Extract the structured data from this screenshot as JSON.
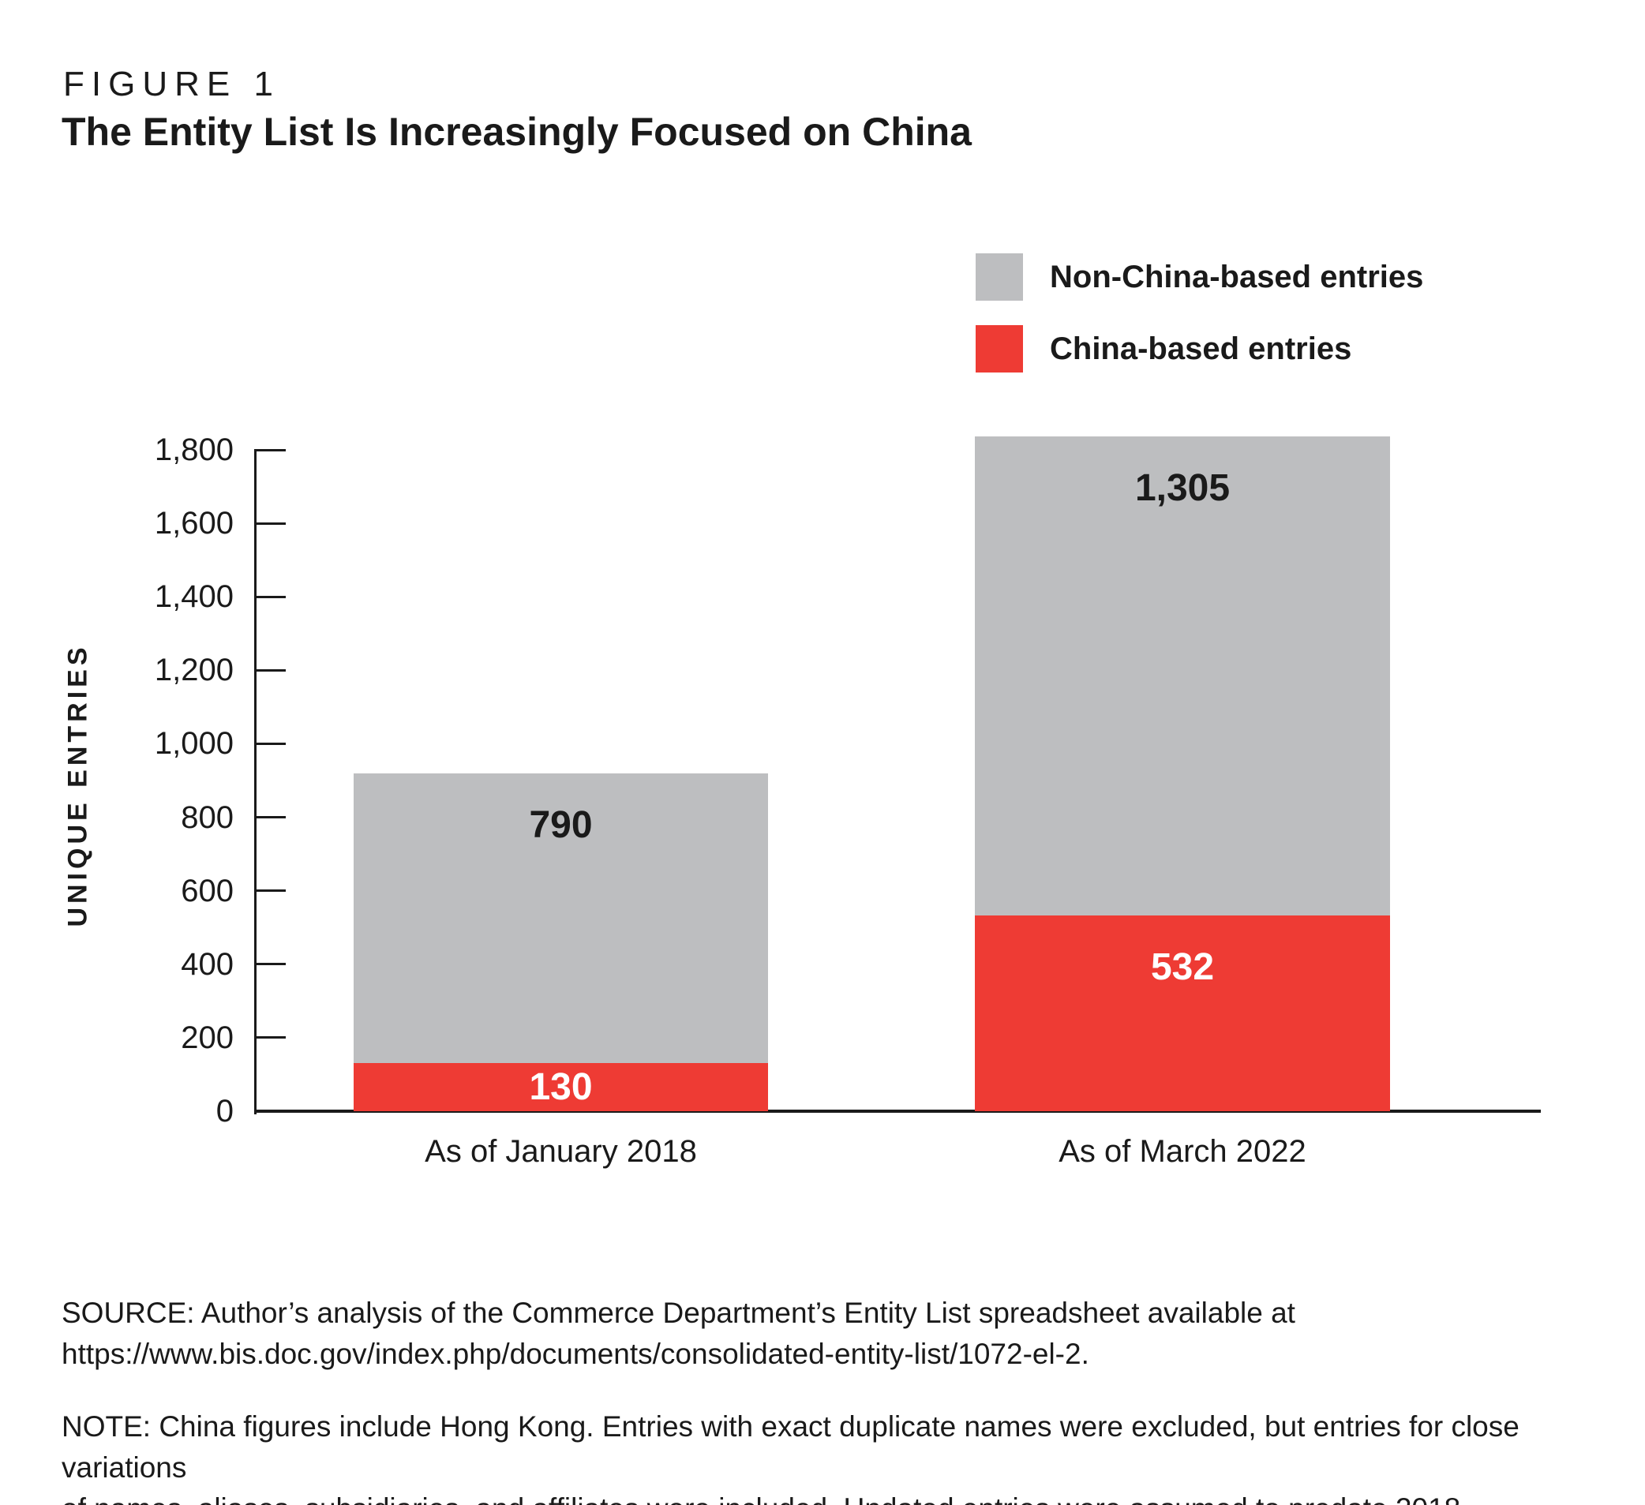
{
  "figure_label": "FIGURE 1",
  "title": "The Entity List Is Increasingly Focused on China",
  "colors": {
    "china_red": "#ee3b34",
    "non_china_gray": "#bdbec0",
    "axis_black": "#1a1a1a",
    "white_label": "#ffffff"
  },
  "legend": {
    "position": "top-right",
    "items": [
      {
        "label": "Non-China-based entries",
        "color": "#bdbec0"
      },
      {
        "label": "China-based entries",
        "color": "#ee3b34"
      }
    ]
  },
  "chart_data": {
    "type": "bar",
    "stacked": true,
    "title": "The Entity List Is Increasingly Focused on China",
    "categories": [
      "As of January 2018",
      "As of March 2022"
    ],
    "series": [
      {
        "name": "China-based entries",
        "color": "#ee3b34",
        "values": [
          130,
          532
        ],
        "value_labels": [
          "130",
          "532"
        ],
        "label_color": "#ffffff"
      },
      {
        "name": "Non-China-based entries",
        "color": "#bdbec0",
        "values": [
          790,
          1305
        ],
        "value_labels": [
          "790",
          "1,305"
        ],
        "label_color": "#1a1a1a"
      }
    ],
    "totals": [
      920,
      1837
    ],
    "xlabel": "",
    "ylabel": "UNIQUE ENTRIES",
    "ylim": [
      0,
      1800
    ],
    "ytick_step": 200,
    "ytick_labels": [
      "0",
      "200",
      "400",
      "600",
      "800",
      "1,000",
      "1,200",
      "1,400",
      "1,600",
      "1,800"
    ],
    "grid": false,
    "legend_position": "top-right"
  },
  "source": {
    "lines": [
      "SOURCE: Author’s analysis of the Commerce Department’s Entity List spreadsheet available at",
      "https://www.bis.doc.gov/index.php/documents/consolidated-entity-list/1072-el-2."
    ]
  },
  "note": {
    "lines": [
      "NOTE: China figures include Hong Kong. Entries with exact duplicate names were excluded, but entries for close variations",
      "of names, aliases, subsidiaries, and affiliates were included. Undated entries were assumed to predate 2018."
    ]
  }
}
